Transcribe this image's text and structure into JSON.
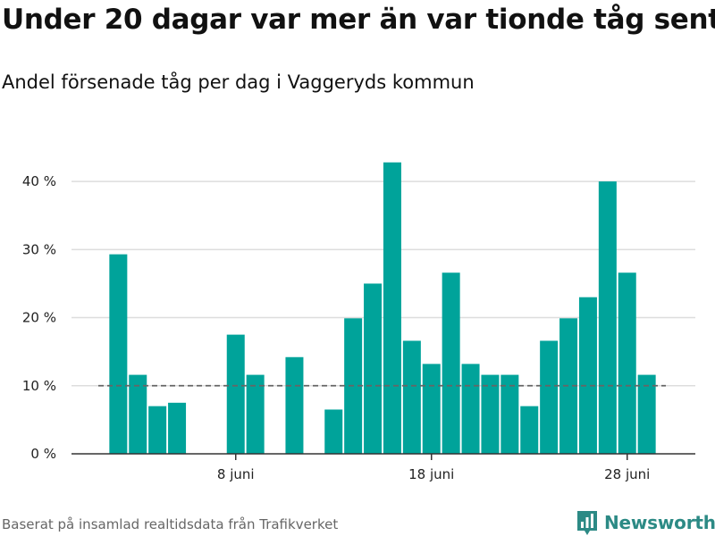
{
  "title": "Under 20 dagar var mer än var tionde tåg sent",
  "subtitle": "Andel försenade tåg per dag i Vaggeryds kommun",
  "caption": "Baserat på insamlad realtidsdata från Trafikverket",
  "brand": {
    "name": "Newsworthy",
    "color": "#2c8a85"
  },
  "colors": {
    "bar": "#00a39a",
    "grid": "#dddddd",
    "reference": "#666666",
    "axis": "#333333"
  },
  "chart_data": {
    "type": "bar",
    "x": [
      "2024-06-01",
      "2024-06-02",
      "2024-06-03",
      "2024-06-04",
      "2024-06-05",
      "2024-06-06",
      "2024-06-07",
      "2024-06-08",
      "2024-06-09",
      "2024-06-10",
      "2024-06-11",
      "2024-06-12",
      "2024-06-13",
      "2024-06-14",
      "2024-06-15",
      "2024-06-16",
      "2024-06-17",
      "2024-06-18",
      "2024-06-19",
      "2024-06-20",
      "2024-06-21",
      "2024-06-22",
      "2024-06-23",
      "2024-06-24",
      "2024-06-25",
      "2024-06-26",
      "2024-06-27",
      "2024-06-28",
      "2024-06-29",
      "2024-06-30"
    ],
    "values": [
      null,
      29.3,
      11.6,
      7.0,
      7.5,
      null,
      null,
      17.5,
      11.6,
      null,
      14.2,
      null,
      6.5,
      19.9,
      25.0,
      42.8,
      16.6,
      13.2,
      26.6,
      13.2,
      11.6,
      11.6,
      7.0,
      16.6,
      19.9,
      23.0,
      40.0,
      26.6,
      11.6,
      null
    ],
    "x_ticks": [
      {
        "x": "2024-06-08",
        "label": "8 juni"
      },
      {
        "x": "2024-06-18",
        "label": "18 juni"
      },
      {
        "x": "2024-06-28",
        "label": "28 juni"
      }
    ],
    "y_ticks": [
      {
        "value": 0,
        "label": "0 %"
      },
      {
        "value": 10,
        "label": "10 %"
      },
      {
        "value": 20,
        "label": "20 %"
      },
      {
        "value": 30,
        "label": "30 %"
      },
      {
        "value": 40,
        "label": "40 %"
      }
    ],
    "ylim": [
      0,
      45
    ],
    "reference_line": 10,
    "grid": true,
    "legend": "none"
  }
}
